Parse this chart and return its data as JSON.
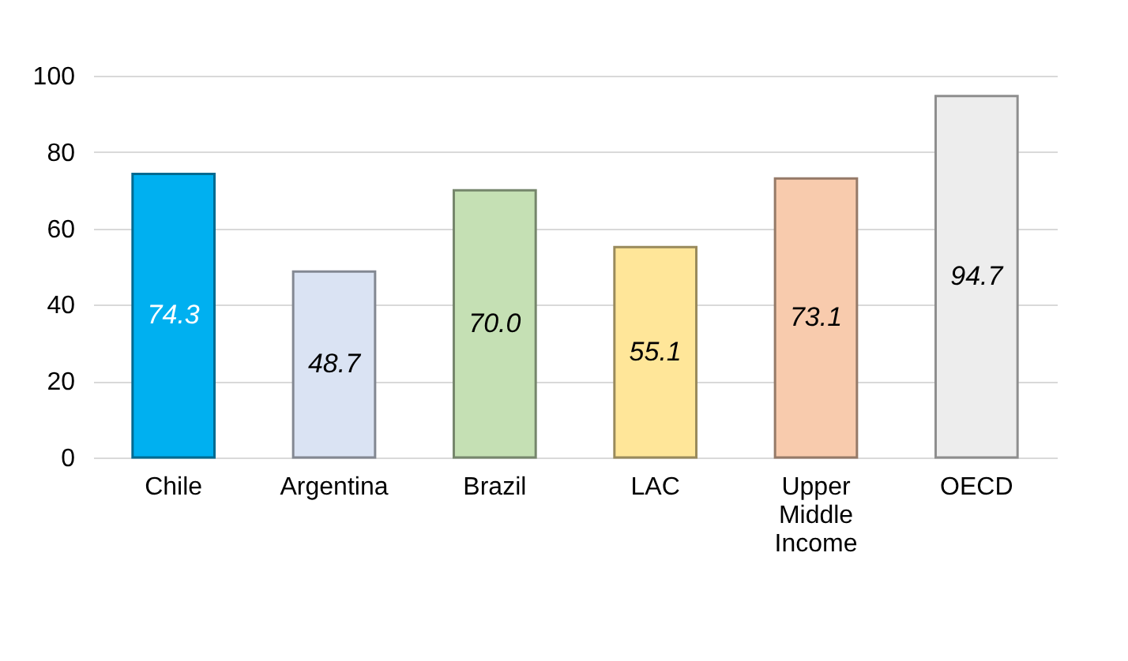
{
  "chart_data": {
    "type": "bar",
    "categories": [
      "Chile",
      "Argentina",
      "Brazil",
      "LAC",
      "Upper Middle Income",
      "OECD"
    ],
    "values": [
      74.3,
      48.7,
      70.0,
      55.1,
      73.1,
      94.7
    ],
    "value_labels": [
      "74.3",
      "48.7",
      "70.0",
      "55.1",
      "73.1",
      "94.7"
    ],
    "colors": [
      "#00b0f0",
      "#dae3f3",
      "#c5e0b4",
      "#ffe699",
      "#f8cbad",
      "#ededed"
    ],
    "ylim": [
      0,
      100
    ],
    "yticks": [
      0,
      20,
      40,
      60,
      80,
      100
    ],
    "grid": "y"
  }
}
